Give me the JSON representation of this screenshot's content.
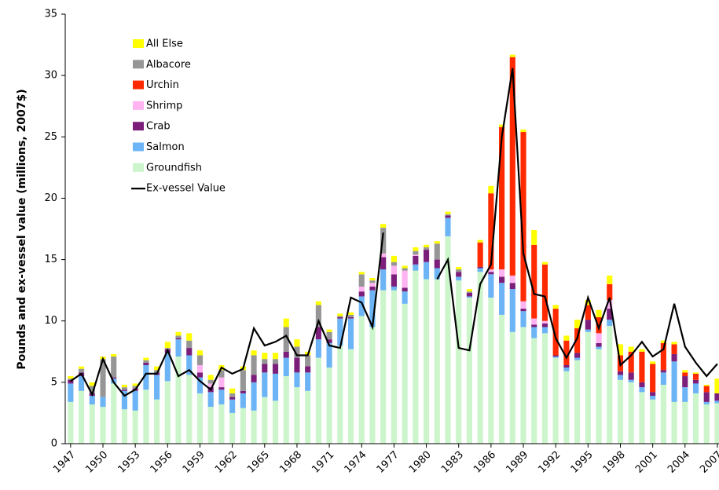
{
  "chart_data": {
    "type": "bar",
    "stacked": true,
    "y_label": "Pounds and ex-vessel value (millions, 2007$)",
    "x": [
      1947,
      1948,
      1949,
      1950,
      1951,
      1952,
      1953,
      1954,
      1955,
      1956,
      1957,
      1958,
      1959,
      1960,
      1961,
      1962,
      1963,
      1964,
      1965,
      1966,
      1967,
      1968,
      1969,
      1970,
      1971,
      1972,
      1973,
      1974,
      1975,
      1976,
      1977,
      1978,
      1979,
      1980,
      1981,
      1982,
      1983,
      1984,
      1985,
      1986,
      1987,
      1988,
      1989,
      1990,
      1991,
      1992,
      1993,
      1994,
      1995,
      1996,
      1997,
      1998,
      1999,
      2000,
      2001,
      2002,
      2003,
      2004,
      2005,
      2006,
      2007
    ],
    "xlim": [
      1946.5,
      2007.15
    ],
    "xticks": [
      1947,
      1950,
      1953,
      1956,
      1959,
      1962,
      1965,
      1968,
      1971,
      1974,
      1977,
      1980,
      1983,
      1986,
      1989,
      1992,
      1995,
      1998,
      2001,
      2004,
      2007
    ],
    "ylim": [
      0,
      35
    ],
    "yticks": [
      0,
      5,
      10,
      15,
      20,
      25,
      30,
      35
    ],
    "legend": "upper-left",
    "series": [
      {
        "name": "Groundfish",
        "color": "#ccf5cc",
        "values": [
          3.4,
          4.3,
          3.2,
          3.0,
          4.9,
          2.8,
          2.7,
          4.4,
          3.6,
          5.1,
          7.1,
          5.6,
          4.1,
          3.0,
          3.2,
          2.5,
          2.9,
          2.7,
          3.8,
          3.5,
          5.5,
          4.6,
          4.3,
          7.0,
          6.2,
          8.0,
          7.7,
          10.4,
          9.5,
          12.5,
          12.5,
          11.4,
          14.1,
          13.4,
          13.4,
          16.9,
          13.3,
          11.9,
          14.0,
          11.9,
          10.5,
          9.1,
          9.5,
          8.6,
          9.0,
          7.0,
          5.9,
          6.8,
          9.1,
          7.7,
          9.6,
          5.2,
          5.0,
          4.2,
          3.6,
          4.8,
          3.4,
          3.4,
          4.1,
          3.2,
          3.3
        ]
      },
      {
        "name": "Salmon",
        "color": "#6cb4f5",
        "values": [
          1.5,
          1.2,
          0.7,
          0.8,
          0.4,
          1.5,
          1.6,
          2.0,
          2.0,
          2.3,
          1.4,
          1.6,
          1.3,
          1.2,
          1.2,
          1.1,
          1.2,
          2.3,
          2.0,
          2.2,
          1.5,
          1.2,
          1.5,
          1.5,
          2.0,
          2.2,
          2.5,
          1.6,
          3.0,
          1.7,
          0.3,
          1.0,
          0.5,
          1.4,
          0.9,
          1.5,
          0.3,
          0.1,
          0.3,
          1.9,
          2.6,
          3.5,
          1.3,
          0.9,
          0.5,
          0.1,
          0.3,
          0.2,
          0.2,
          0.2,
          0.5,
          0.4,
          0.2,
          0.4,
          0.3,
          1.0,
          3.3,
          1.2,
          0.8,
          0.2,
          0.2
        ]
      },
      {
        "name": "Crab",
        "color": "#7b1f7b",
        "values": [
          0.3,
          0.3,
          0.2,
          0,
          0.1,
          0.1,
          0.2,
          0.2,
          0.2,
          0.3,
          0.1,
          0.6,
          0.4,
          0.4,
          0.2,
          0.2,
          0.2,
          0.6,
          0.7,
          0.8,
          0.5,
          1.2,
          0.5,
          1.0,
          0.3,
          0.1,
          0.1,
          0.4,
          0.3,
          1.0,
          1.0,
          0.3,
          0.7,
          1.0,
          0.7,
          0.2,
          0.4,
          0.3,
          0.1,
          0.2,
          0.5,
          0.5,
          0.2,
          0.2,
          0.3,
          0.1,
          0.2,
          0.4,
          0.8,
          0.3,
          0.9,
          0.3,
          0.6,
          0.4,
          0.3,
          0.2,
          0.6,
          0.9,
          0.3,
          0.8,
          0.6
        ]
      },
      {
        "name": "Shrimp",
        "color": "#ffb3f0",
        "values": [
          0,
          0,
          0,
          0,
          0,
          0,
          0,
          0,
          0,
          0,
          0,
          0,
          0.6,
          0.3,
          0.8,
          0,
          0,
          0,
          0,
          0,
          0,
          0,
          0,
          0,
          0,
          0,
          0,
          0.4,
          0.3,
          0.3,
          0.7,
          1.4,
          0.1,
          0,
          0,
          0,
          0,
          0,
          0,
          0.2,
          0.6,
          0.6,
          0.6,
          0.5,
          0.2,
          0,
          0,
          0,
          0,
          0.8,
          0.7,
          0,
          0,
          0,
          0,
          0,
          0,
          0,
          0,
          0,
          0
        ]
      },
      {
        "name": "Urchin",
        "color": "#ff2a00",
        "values": [
          0,
          0,
          0,
          0,
          0,
          0,
          0,
          0,
          0,
          0,
          0,
          0,
          0,
          0,
          0,
          0,
          0,
          0,
          0,
          0,
          0,
          0,
          0,
          0,
          0,
          0,
          0,
          0,
          0,
          0,
          0,
          0,
          0,
          0,
          0,
          0,
          0,
          0,
          2.0,
          6.2,
          11.6,
          17.8,
          13.8,
          6.0,
          4.6,
          3.8,
          2.0,
          2.0,
          1.2,
          1.3,
          1.3,
          1.3,
          1.7,
          2.5,
          2.3,
          2.2,
          0.8,
          0.3,
          0.5,
          0.5,
          0
        ]
      },
      {
        "name": "Albacore",
        "color": "#969696",
        "values": [
          0.1,
          0.3,
          0.6,
          3.1,
          1.7,
          0.2,
          0.2,
          0.2,
          0.2,
          0.1,
          0.2,
          0.6,
          0.8,
          0.3,
          0.6,
          0.3,
          1.7,
          1.6,
          0.4,
          0.4,
          2.0,
          0.9,
          0.9,
          1.8,
          0.6,
          0.1,
          0.2,
          1.0,
          0.2,
          2.1,
          0.3,
          0.2,
          0.3,
          0.2,
          1.3,
          0.1,
          0.2,
          0.1,
          0,
          0,
          0,
          0,
          0,
          0,
          0,
          0,
          0,
          0,
          0,
          0,
          0,
          0,
          0,
          0,
          0,
          0,
          0,
          0,
          0,
          0,
          0
        ]
      },
      {
        "name": "All Else",
        "color": "#ffff00",
        "values": [
          0.2,
          0.2,
          0.3,
          0.2,
          0.2,
          0.2,
          0.2,
          0.2,
          0.3,
          0.5,
          0.3,
          0.6,
          0.4,
          0.4,
          0.4,
          0.4,
          0.3,
          0.4,
          0.5,
          0.5,
          0.7,
          0.6,
          0.3,
          0.3,
          0.2,
          0.2,
          0.2,
          0.2,
          0.2,
          0.3,
          0.5,
          0.2,
          0.3,
          0.2,
          0.2,
          0.2,
          0.2,
          0.2,
          0.2,
          0.6,
          0.2,
          0.2,
          0.2,
          1.2,
          0.2,
          0.3,
          0.4,
          0.7,
          0.4,
          0.6,
          0.7,
          0.9,
          0.4,
          0.2,
          0.2,
          0.2,
          0.2,
          0.2,
          0.1,
          0.1,
          1.2
        ]
      },
      {
        "name": "Ex-vessel Value",
        "type": "line",
        "color": "#000000",
        "values": [
          5.1,
          5.7,
          4.0,
          6.9,
          5.0,
          3.9,
          4.4,
          5.7,
          5.7,
          7.6,
          5.5,
          6.0,
          5.1,
          4.4,
          6.2,
          5.7,
          6.1,
          9.4,
          8.0,
          8.3,
          8.8,
          7.2,
          7.2,
          10.0,
          8.0,
          7.8,
          11.9,
          11.5,
          9.5,
          17.2,
          null,
          null,
          null,
          null,
          13.4,
          15.0,
          7.8,
          7.6,
          13.0,
          14.6,
          25.0,
          30.6,
          15.5,
          12.2,
          12.0,
          8.6,
          7.0,
          8.6,
          11.9,
          9.4,
          11.9,
          6.4,
          7.2,
          8.3,
          7.1,
          7.7,
          11.4,
          7.9,
          6.6,
          5.5,
          6.5
        ]
      }
    ]
  }
}
